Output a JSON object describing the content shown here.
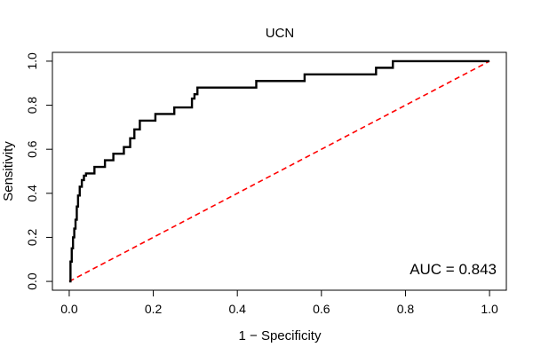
{
  "chart_data": {
    "type": "line",
    "title": "UCN",
    "xlabel": "1 − Specificity",
    "ylabel": "Sensitivity",
    "xlim": [
      -0.04,
      1.04
    ],
    "ylim": [
      -0.04,
      1.04
    ],
    "x_ticks": [
      0.0,
      0.2,
      0.4,
      0.6,
      0.8,
      1.0
    ],
    "x_tick_labels": [
      "0.0",
      "0.2",
      "0.4",
      "0.6",
      "0.8",
      "1.0"
    ],
    "y_ticks": [
      0.0,
      0.2,
      0.4,
      0.6,
      0.8,
      1.0
    ],
    "y_tick_labels": [
      "0.0",
      "0.2",
      "0.4",
      "0.6",
      "0.8",
      "1.0"
    ],
    "grid": false,
    "annotation": "AUC = 0.843",
    "series": [
      {
        "color": "#000000",
        "style": "solid-step",
        "x": [
          0.0,
          0.003,
          0.003,
          0.006,
          0.006,
          0.009,
          0.009,
          0.012,
          0.012,
          0.015,
          0.015,
          0.018,
          0.018,
          0.021,
          0.021,
          0.025,
          0.025,
          0.03,
          0.03,
          0.035,
          0.035,
          0.04,
          0.04,
          0.06,
          0.06,
          0.085,
          0.085,
          0.105,
          0.105,
          0.13,
          0.13,
          0.145,
          0.145,
          0.155,
          0.155,
          0.168,
          0.168,
          0.205,
          0.205,
          0.25,
          0.25,
          0.292,
          0.292,
          0.298,
          0.298,
          0.305,
          0.305,
          0.445,
          0.445,
          0.56,
          0.56,
          0.73,
          0.73,
          0.77,
          0.77,
          1.0
        ],
        "y": [
          0.0,
          0.0,
          0.09,
          0.09,
          0.15,
          0.15,
          0.2,
          0.2,
          0.24,
          0.24,
          0.28,
          0.28,
          0.34,
          0.34,
          0.39,
          0.39,
          0.43,
          0.43,
          0.46,
          0.46,
          0.48,
          0.48,
          0.49,
          0.49,
          0.52,
          0.52,
          0.55,
          0.55,
          0.58,
          0.58,
          0.61,
          0.61,
          0.65,
          0.65,
          0.69,
          0.69,
          0.73,
          0.73,
          0.76,
          0.76,
          0.79,
          0.79,
          0.83,
          0.83,
          0.85,
          0.85,
          0.88,
          0.88,
          0.91,
          0.91,
          0.94,
          0.94,
          0.97,
          0.97,
          1.0,
          1.0
        ]
      },
      {
        "color": "#ff0000",
        "style": "dashed",
        "x": [
          0,
          1
        ],
        "y": [
          0,
          1
        ]
      }
    ]
  }
}
